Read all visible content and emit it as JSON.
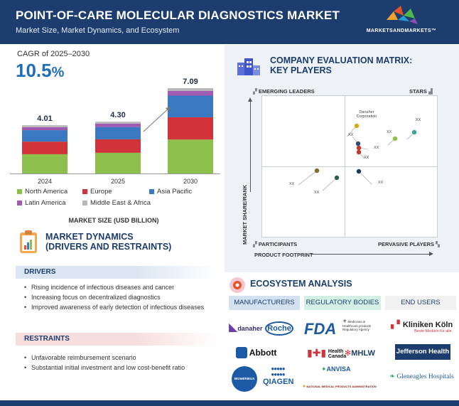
{
  "header": {
    "title": "POINT-OF-CARE MOLECULAR DIAGNOSTICS MARKET",
    "subtitle": "Market Size, Market Dynamics, and Ecosystem",
    "brand": "MARKETSANDMARKETS™"
  },
  "cagr": {
    "label": "CAGR of 2025–2030",
    "value": "10.5",
    "unit": "%"
  },
  "chart_data": {
    "type": "bar",
    "stacked": true,
    "categories": [
      "2024",
      "2025",
      "2030"
    ],
    "totals": [
      "4.01",
      "4.30",
      "7.09"
    ],
    "xlabel": "MARKET SIZE (USD BILLION)",
    "series": [
      {
        "name": "North America",
        "color": "#8cc04b",
        "values": [
          1.6,
          1.72,
          2.82
        ]
      },
      {
        "name": "Europe",
        "color": "#d0343a",
        "values": [
          1.05,
          1.12,
          1.85
        ]
      },
      {
        "name": "Asia Pacific",
        "color": "#3a78c2",
        "values": [
          0.95,
          1.02,
          1.8
        ]
      },
      {
        "name": "Latin America",
        "color": "#a05bb0",
        "values": [
          0.25,
          0.28,
          0.4
        ]
      },
      {
        "name": "Middle East & Africa",
        "color": "#b8b8b8",
        "values": [
          0.16,
          0.16,
          0.22
        ]
      }
    ]
  },
  "matrix": {
    "title_line1": "COMPANY EVALUATION MATRIX:",
    "title_line2": "KEY PLAYERS",
    "quadrants": {
      "top_left": "EMERGING LEADERS",
      "top_right": "STARS",
      "bottom_left": "PARTICIPANTS",
      "bottom_right": "PERVASIVE PLAYERS"
    },
    "y_axis": "MARKET SHARE/RANK",
    "x_axis": "PRODUCT FOOTPRINT",
    "company_label_line1": "Danaher",
    "company_label_line2": "Corporation",
    "placeholder": "XX",
    "point_colors": [
      "#d4a81a",
      "#2a4a7a",
      "#c0392b",
      "#8cc04b",
      "#3aa58e",
      "#7b6d2a",
      "#2c5f4a",
      "#1f3a5e"
    ]
  },
  "dynamics": {
    "title_line1": "MARKET DYNAMICS",
    "title_line2": "(DRIVERS AND RESTRAINTS)",
    "drivers_label": "DRIVERS",
    "drivers": [
      "Rising incidence of infectious diseases and cancer",
      "Increasing focus on decentralized diagnostics",
      "Improved awareness of early detection of infectious diseases"
    ],
    "restraints_label": "RESTRAINTS",
    "restraints": [
      "Unfavorable reimbursement scenario",
      "Substantial initial investment and low cost-benefit ratio"
    ]
  },
  "ecosystem": {
    "title": "ECOSYSTEM ANALYSIS",
    "headers": [
      "MANUFACTURERS",
      "REGULATORY BODIES",
      "END USERS"
    ],
    "manufacturers": [
      "danaher",
      "Roche",
      "Abbott",
      "BIOMÉRIEUX",
      "QIAGEN"
    ],
    "regulatory": [
      "FDA",
      "Medicines & Healthcare products Regulatory Agency",
      "Health Canada",
      "MHLW",
      "ANVISA",
      "NATIONAL MEDICAL PRODUCTS ADMINISTRATION"
    ],
    "end_users": [
      "Kliniken Köln",
      "Beste Medizin für alle.",
      "Jefferson Health",
      "Gleneagles Hospitals"
    ]
  }
}
